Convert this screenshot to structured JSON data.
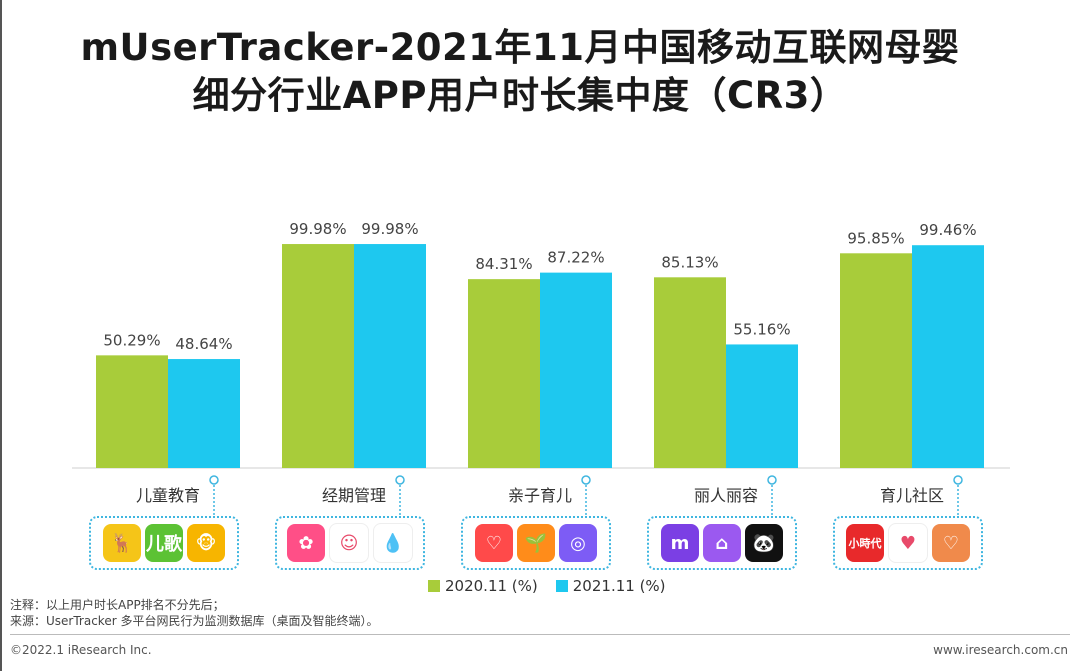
{
  "title": {
    "line1": "mUserTracker-2021年11月中国移动互联网母婴",
    "line2": "细分行业APP用户时长集中度（CR3）"
  },
  "chart_data": {
    "type": "bar",
    "categories": [
      "儿童教育",
      "经期管理",
      "亲子育儿",
      "丽人丽容",
      "育儿社区"
    ],
    "series": [
      {
        "name": "2020.11 (%)",
        "color": "#a8cc3a",
        "values": [
          50.29,
          99.98,
          84.31,
          85.13,
          95.85
        ],
        "labels": [
          "50.29%",
          "99.98%",
          "84.31%",
          "85.13%",
          "95.85%"
        ]
      },
      {
        "name": "2021.11 (%)",
        "color": "#1ec8ef",
        "values": [
          48.64,
          99.98,
          87.22,
          55.16,
          99.46
        ],
        "labels": [
          "48.64%",
          "99.98%",
          "87.22%",
          "55.16%",
          "99.46%"
        ]
      }
    ],
    "ylim": [
      0,
      100
    ],
    "grid": false,
    "legend_position": "bottom"
  },
  "app_groups": [
    {
      "icons": [
        {
          "name": "deer-app-icon",
          "color": "#f5c518",
          "glyph": "🦌"
        },
        {
          "name": "erge-duoduo-icon",
          "color": "#5cc234",
          "glyph": "儿歌"
        },
        {
          "name": "monkey-app-icon",
          "color": "#f7b500",
          "glyph": "🐵"
        }
      ]
    },
    {
      "icons": [
        {
          "name": "flower-app-icon",
          "color": "#ff4f87",
          "glyph": "✿"
        },
        {
          "name": "girl-face-icon",
          "color": "#ffffff",
          "glyph": "☺"
        },
        {
          "name": "drop-icon",
          "color": "#ffffff",
          "glyph": "💧"
        }
      ]
    },
    {
      "icons": [
        {
          "name": "heart-link-icon",
          "color": "#ff4a4a",
          "glyph": "♡"
        },
        {
          "name": "sprout-icon",
          "color": "#ff8c1a",
          "glyph": "🌱"
        },
        {
          "name": "baby-belly-icon",
          "color": "#7d5cf5",
          "glyph": "◎"
        }
      ]
    },
    {
      "icons": [
        {
          "name": "m-letter-icon",
          "color": "#7b3fe4",
          "glyph": "m"
        },
        {
          "name": "photo-frame-icon",
          "color": "#9b59f0",
          "glyph": "⌂"
        },
        {
          "name": "panda-hat-icon",
          "color": "#111111",
          "glyph": "🐼"
        }
      ]
    },
    {
      "icons": [
        {
          "name": "xiaoshidai-icon",
          "color": "#e8292b",
          "glyph": "小時代"
        },
        {
          "name": "heart-colorful-icon",
          "color": "#ffffff",
          "glyph": "♥"
        },
        {
          "name": "heart-hands-icon",
          "color": "#f08a4b",
          "glyph": "♡"
        }
      ]
    }
  ],
  "legend": {
    "items": [
      "2020.11 (%)",
      "2021.11 (%)"
    ]
  },
  "notes": {
    "line1": "注释：以上用户时长APP排名不分先后；",
    "line2": "来源：UserTracker 多平台网民行为监测数据库（桌面及智能终端）。"
  },
  "footer": {
    "left": "©2022.1 iResearch Inc.",
    "right": "www.iresearch.com.cn"
  }
}
